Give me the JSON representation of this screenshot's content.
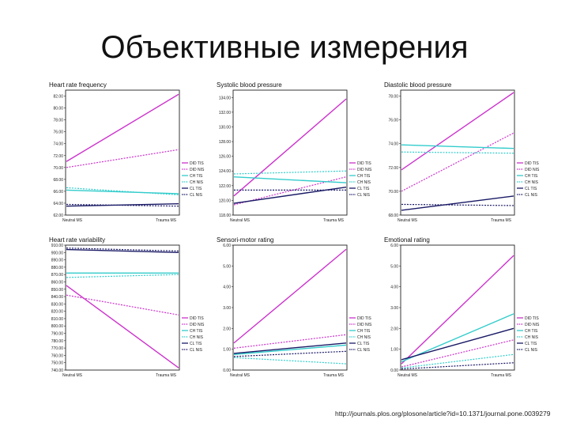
{
  "slide": {
    "title": "Объективные измерения",
    "source": "http://journals.plos.org/plosone/article?id=10.1371/journal.pone.0039279"
  },
  "legend_entries": [
    "DID TIS",
    "DID NIS",
    "CH TIS",
    "CH NIS",
    "CL TIS",
    "CL NIS"
  ],
  "series_styles": [
    {
      "color": "#cc33cc",
      "dash": false
    },
    {
      "color": "#cc33cc",
      "dash": true
    },
    {
      "color": "#33cccc",
      "dash": false
    },
    {
      "color": "#33cccc",
      "dash": true
    },
    {
      "color": "#1a1a66",
      "dash": false
    },
    {
      "color": "#1a1a66",
      "dash": true
    }
  ],
  "chart_data": [
    {
      "type": "line",
      "title": "Heart rate frequency",
      "categories": [
        "Neutral MS",
        "Trauma MS"
      ],
      "yticks": [
        "62.00",
        "64.00",
        "66.00",
        "68.00",
        "70.00",
        "72.00",
        "74.00",
        "76.00",
        "78.00",
        "80.00",
        "82.00"
      ],
      "ylim": [
        62,
        83
      ],
      "series": [
        {
          "name": "DID TIS",
          "values": [
            71.0,
            82.3
          ]
        },
        {
          "name": "DID NIS",
          "values": [
            70.0,
            73.0
          ]
        },
        {
          "name": "CH TIS",
          "values": [
            66.2,
            65.6
          ]
        },
        {
          "name": "CH NIS",
          "values": [
            66.6,
            65.4
          ]
        },
        {
          "name": "CL TIS",
          "values": [
            63.5,
            63.9
          ]
        },
        {
          "name": "CL NIS",
          "values": [
            63.8,
            63.5
          ]
        }
      ],
      "legend": "right"
    },
    {
      "type": "line",
      "title": "Systolic blood pressure",
      "categories": [
        "Neutral MS",
        "Trauma MS"
      ],
      "yticks": [
        "118.00",
        "120.00",
        "122.00",
        "124.00",
        "126.00",
        "128.00",
        "130.00",
        "132.00",
        "134.00"
      ],
      "ylim": [
        118,
        135
      ],
      "series": [
        {
          "name": "DID TIS",
          "values": [
            120.6,
            133.8
          ]
        },
        {
          "name": "DID NIS",
          "values": [
            119.4,
            123.2
          ]
        },
        {
          "name": "CH TIS",
          "values": [
            123.2,
            122.4
          ]
        },
        {
          "name": "CH NIS",
          "values": [
            123.6,
            124.0
          ]
        },
        {
          "name": "CL TIS",
          "values": [
            119.6,
            121.8
          ]
        },
        {
          "name": "CL NIS",
          "values": [
            121.4,
            121.4
          ]
        }
      ],
      "legend": "right"
    },
    {
      "type": "line",
      "title": "Diastolic blood pressure",
      "categories": [
        "Neutral MS",
        "Trauma MS"
      ],
      "yticks": [
        "68.00",
        "70.00",
        "72.00",
        "74.00",
        "76.00",
        "78.00"
      ],
      "ylim": [
        68,
        78.5
      ],
      "series": [
        {
          "name": "DID TIS",
          "values": [
            71.8,
            78.3
          ]
        },
        {
          "name": "DID NIS",
          "values": [
            70.0,
            74.9
          ]
        },
        {
          "name": "CH TIS",
          "values": [
            73.9,
            73.6
          ]
        },
        {
          "name": "CH NIS",
          "values": [
            73.3,
            73.2
          ]
        },
        {
          "name": "CL TIS",
          "values": [
            68.4,
            69.6
          ]
        },
        {
          "name": "CL NIS",
          "values": [
            68.9,
            68.8
          ]
        }
      ],
      "legend": "right"
    },
    {
      "type": "line",
      "title": "Heart rate variability",
      "categories": [
        "Neutral MS",
        "Trauma MS"
      ],
      "yticks": [
        "740.00",
        "750.00",
        "760.00",
        "770.00",
        "780.00",
        "790.00",
        "800.00",
        "810.00",
        "820.00",
        "830.00",
        "840.00",
        "850.00",
        "860.00",
        "870.00",
        "880.00",
        "890.00",
        "900.00",
        "910.00"
      ],
      "ylim": [
        740,
        910
      ],
      "series": [
        {
          "name": "DID TIS",
          "values": [
            855,
            743
          ]
        },
        {
          "name": "DID NIS",
          "values": [
            842,
            815
          ]
        },
        {
          "name": "CH TIS",
          "values": [
            872,
            872
          ]
        },
        {
          "name": "CH NIS",
          "values": [
            866,
            870
          ]
        },
        {
          "name": "CL TIS",
          "values": [
            904,
            900
          ]
        },
        {
          "name": "CL NIS",
          "values": [
            906,
            902
          ]
        }
      ],
      "legend": "right"
    },
    {
      "type": "line",
      "title": "Sensori-motor rating",
      "categories": [
        "Neutral MS",
        "Trauma MS"
      ],
      "yticks": [
        "0.00",
        "1.00",
        "2.00",
        "3.00",
        "4.00",
        "5.00",
        "6.00"
      ],
      "ylim": [
        0,
        6
      ],
      "series": [
        {
          "name": "DID TIS",
          "values": [
            1.3,
            5.8
          ]
        },
        {
          "name": "DID NIS",
          "values": [
            1.05,
            1.7
          ]
        },
        {
          "name": "CH TIS",
          "values": [
            0.75,
            1.2
          ]
        },
        {
          "name": "CH NIS",
          "values": [
            0.6,
            0.3
          ]
        },
        {
          "name": "CL TIS",
          "values": [
            0.8,
            1.3
          ]
        },
        {
          "name": "CL NIS",
          "values": [
            0.65,
            0.9
          ]
        }
      ],
      "legend": "right"
    },
    {
      "type": "line",
      "title": "Emotional rating",
      "categories": [
        "Neutral MS",
        "Trauma MS"
      ],
      "yticks": [
        "0.00",
        "1.00",
        "2.00",
        "3.00",
        "4.00",
        "5.00",
        "6.00"
      ],
      "ylim": [
        0,
        6
      ],
      "series": [
        {
          "name": "DID TIS",
          "values": [
            0.3,
            5.5
          ]
        },
        {
          "name": "DID NIS",
          "values": [
            0.15,
            1.45
          ]
        },
        {
          "name": "CH TIS",
          "values": [
            0.4,
            2.7
          ]
        },
        {
          "name": "CH NIS",
          "values": [
            0.1,
            0.75
          ]
        },
        {
          "name": "CL TIS",
          "values": [
            0.5,
            2.0
          ]
        },
        {
          "name": "CL NIS",
          "values": [
            0.05,
            0.35
          ]
        }
      ],
      "legend": "right"
    }
  ]
}
